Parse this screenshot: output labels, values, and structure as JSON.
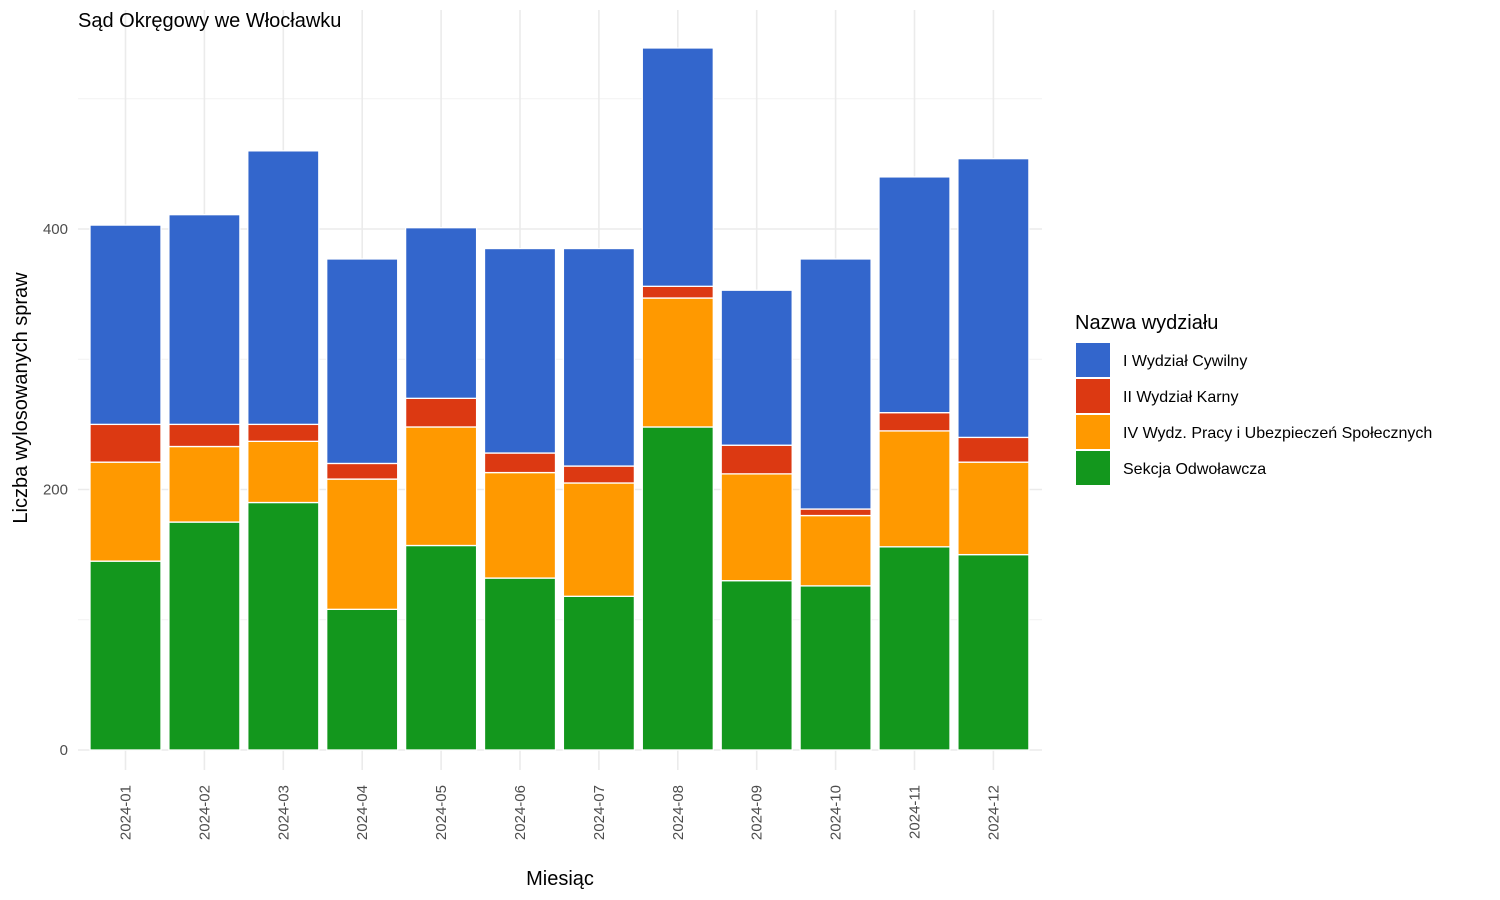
{
  "chart_data": {
    "type": "bar",
    "stacked": true,
    "title": "Sąd Okręgowy we Włocławku",
    "xlabel": "Miesiąc",
    "ylabel": "Liczba wylosowanych spraw",
    "ylim": [
      0,
      560
    ],
    "yticks": [
      0,
      200,
      400
    ],
    "grid": true,
    "legend": {
      "title": "Nazwa wydziału",
      "position": "right"
    },
    "categories": [
      "2024-01",
      "2024-02",
      "2024-03",
      "2024-04",
      "2024-05",
      "2024-06",
      "2024-07",
      "2024-08",
      "2024-09",
      "2024-10",
      "2024-11",
      "2024-12"
    ],
    "series": [
      {
        "name": "Sekcja Odwoławcza",
        "color": "#13971d",
        "values": [
          145,
          175,
          190,
          108,
          157,
          132,
          118,
          248,
          130,
          126,
          156,
          150
        ]
      },
      {
        "name": "IV Wydz. Pracy i Ubezpieczeń Społecznych",
        "color": "#ff9900",
        "values": [
          76,
          58,
          47,
          100,
          91,
          81,
          87,
          99,
          82,
          54,
          89,
          71
        ]
      },
      {
        "name": "II Wydział Karny",
        "color": "#dc3912",
        "values": [
          29,
          17,
          13,
          12,
          22,
          15,
          13,
          9,
          22,
          5,
          14,
          19
        ]
      },
      {
        "name": "I Wydział Cywilny",
        "color": "#3366cc",
        "values": [
          153,
          161,
          210,
          157,
          131,
          157,
          167,
          183,
          119,
          192,
          181,
          214
        ]
      }
    ],
    "legend_order": [
      "I Wydział Cywilny",
      "II Wydział Karny",
      "IV Wydz. Pracy i Ubezpieczeń Społecznych",
      "Sekcja Odwoławcza"
    ]
  }
}
